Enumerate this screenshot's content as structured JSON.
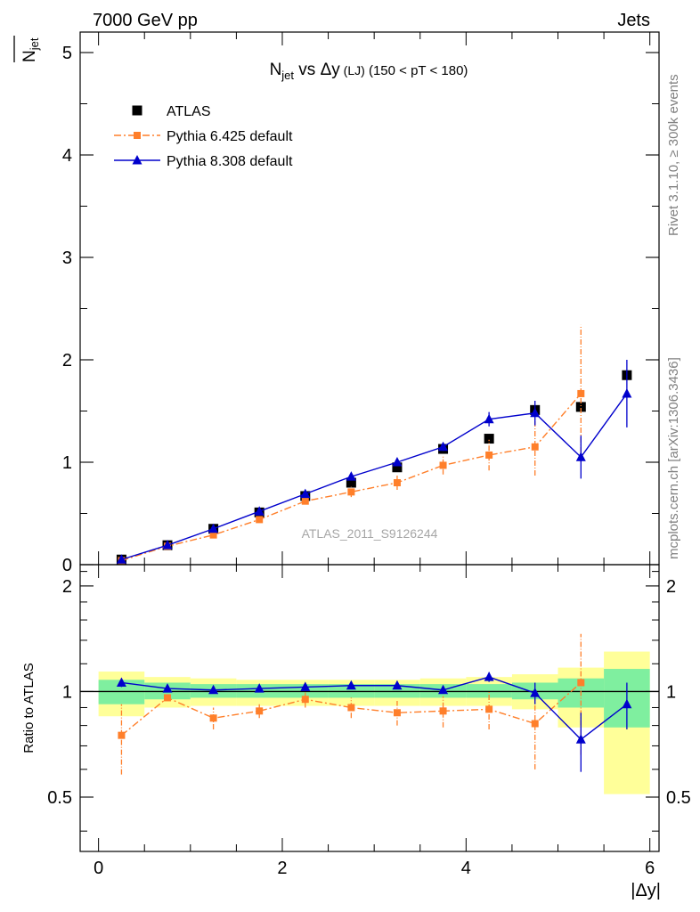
{
  "header": {
    "left": "7000 GeV pp",
    "right": "Jets"
  },
  "side_labels": {
    "rivet": "Rivet 3.1.10, ≥ 300k events",
    "mcplots": "mcplots.cern.ch [arXiv:1306.3436]"
  },
  "chart_data": [
    {
      "type": "scatter",
      "panel": "main",
      "title": {
        "main": "N",
        "sub": "jet",
        "mid": " vs Δy",
        "small": " (LJ)",
        "tail": " (150 < pT < 180)"
      },
      "ylabel": {
        "main": "N",
        "sub": "jet"
      },
      "watermark": "ATLAS_2011_S9126244",
      "xlim": [
        -0.2,
        6.1
      ],
      "ylim": [
        0,
        5.2
      ],
      "yticks": [
        0,
        1,
        2,
        3,
        4,
        5
      ],
      "ytick_labels": [
        "0",
        "1",
        "2",
        "3",
        "4",
        "5"
      ],
      "legend_position": "top-left",
      "series": [
        {
          "name": "ATLAS",
          "color": "#000000",
          "marker": "square",
          "x": [
            0.25,
            0.75,
            1.25,
            1.75,
            2.25,
            2.75,
            3.25,
            3.75,
            4.25,
            4.75,
            5.25,
            5.75
          ],
          "y": [
            0.05,
            0.19,
            0.35,
            0.51,
            0.67,
            0.8,
            0.95,
            1.13,
            1.23,
            1.51,
            1.54,
            1.85
          ]
        },
        {
          "name": "Pythia 6.425 default",
          "color": "#ff7f2a",
          "marker": "square-small",
          "line": "dashdot",
          "x": [
            0.25,
            0.75,
            1.25,
            1.75,
            2.25,
            2.75,
            3.25,
            3.75,
            4.25,
            4.75,
            5.25
          ],
          "y": [
            0.04,
            0.18,
            0.29,
            0.44,
            0.62,
            0.71,
            0.8,
            0.97,
            1.07,
            1.15,
            1.67
          ],
          "yerr": [
            0.01,
            0.01,
            0.02,
            0.03,
            0.03,
            0.05,
            0.07,
            0.09,
            0.15,
            0.28,
            0.67
          ]
        },
        {
          "name": "Pythia 8.308 default",
          "color": "#0000cc",
          "marker": "triangle",
          "line": "solid",
          "x": [
            0.25,
            0.75,
            1.25,
            1.75,
            2.25,
            2.75,
            3.25,
            3.75,
            4.25,
            4.75,
            5.25,
            5.75
          ],
          "y": [
            0.05,
            0.19,
            0.35,
            0.52,
            0.69,
            0.86,
            1.0,
            1.15,
            1.42,
            1.48,
            1.05,
            1.67
          ],
          "yerr": [
            0.005,
            0.01,
            0.01,
            0.015,
            0.02,
            0.02,
            0.03,
            0.04,
            0.07,
            0.12,
            0.21,
            0.33
          ]
        }
      ]
    },
    {
      "type": "scatter",
      "panel": "ratio",
      "ylabel": "Ratio to ATLAS",
      "xlabel": "|Δy|",
      "xlim": [
        -0.2,
        6.1
      ],
      "ylim": [
        0.35,
        2.3
      ],
      "xticks": [
        0,
        2,
        4,
        6
      ],
      "xtick_labels": [
        "0",
        "2",
        "4",
        "6"
      ],
      "yticks": [
        0.5,
        1,
        2
      ],
      "ytick_labels": [
        "0.5",
        "1",
        "2"
      ],
      "reference_line": 1,
      "bands": {
        "bin_edges": [
          0,
          0.5,
          1.0,
          1.5,
          2.0,
          2.5,
          3.0,
          3.5,
          4.0,
          4.5,
          5.0,
          5.5,
          6.0
        ],
        "inner": {
          "color": "#7fef9f",
          "lo": [
            0.92,
            0.95,
            0.96,
            0.96,
            0.96,
            0.96,
            0.96,
            0.96,
            0.96,
            0.95,
            0.9,
            0.79
          ],
          "hi": [
            1.08,
            1.06,
            1.05,
            1.05,
            1.05,
            1.05,
            1.05,
            1.05,
            1.05,
            1.06,
            1.09,
            1.16
          ]
        },
        "outer": {
          "color": "#ffff99",
          "lo": [
            0.85,
            0.9,
            0.91,
            0.91,
            0.91,
            0.91,
            0.91,
            0.91,
            0.91,
            0.89,
            0.79,
            0.51
          ],
          "hi": [
            1.14,
            1.1,
            1.09,
            1.08,
            1.08,
            1.08,
            1.08,
            1.09,
            1.1,
            1.12,
            1.17,
            1.3
          ]
        }
      },
      "series": [
        {
          "name": "Pythia 6.425 default",
          "color": "#ff7f2a",
          "marker": "square-small",
          "line": "dashdot",
          "x": [
            0.25,
            0.75,
            1.25,
            1.75,
            2.25,
            2.75,
            3.25,
            3.75,
            4.25,
            4.75,
            5.25
          ],
          "y": [
            0.75,
            0.96,
            0.84,
            0.88,
            0.95,
            0.9,
            0.87,
            0.88,
            0.89,
            0.81,
            1.06
          ],
          "yerr": [
            0.17,
            0.02,
            0.06,
            0.04,
            0.05,
            0.06,
            0.07,
            0.09,
            0.11,
            0.21,
            0.4
          ]
        },
        {
          "name": "Pythia 8.308 default",
          "color": "#0000cc",
          "marker": "triangle",
          "line": "solid",
          "x": [
            0.25,
            0.75,
            1.25,
            1.75,
            2.25,
            2.75,
            3.25,
            3.75,
            4.25,
            4.75,
            5.25,
            5.75
          ],
          "y": [
            1.06,
            1.02,
            1.01,
            1.02,
            1.03,
            1.04,
            1.04,
            1.01,
            1.1,
            0.99,
            0.73,
            0.92
          ],
          "yerr": [
            0.03,
            0.02,
            0.01,
            0.015,
            0.015,
            0.015,
            0.02,
            0.025,
            0.035,
            0.07,
            0.14,
            0.14
          ]
        }
      ]
    }
  ]
}
